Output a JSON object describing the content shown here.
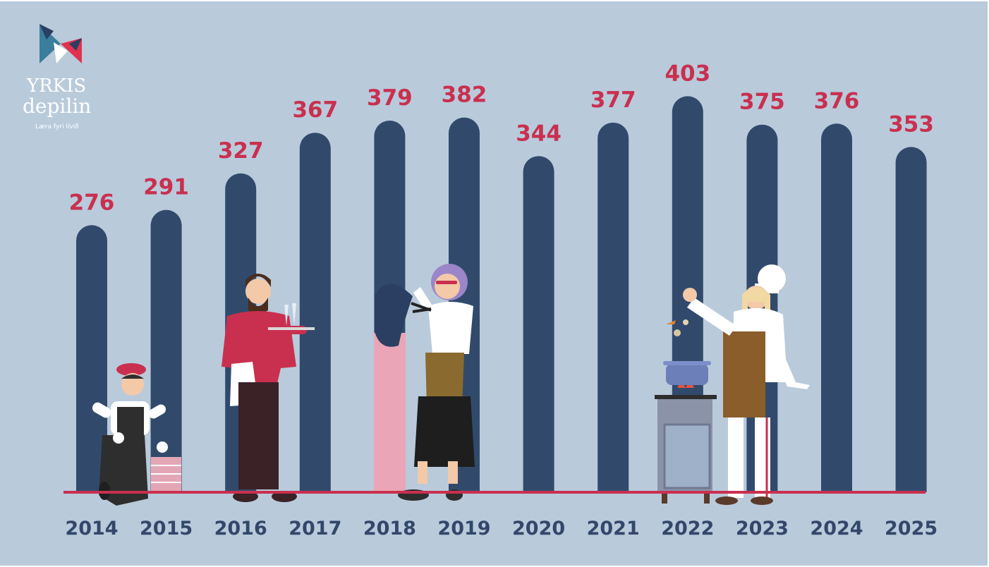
{
  "logo": {
    "line1": "YRKIS",
    "line2": "depilin",
    "tagline": "Læra fyri lívið",
    "colors": {
      "teal": "#3a7d9c",
      "navy": "#2a3f62",
      "red": "#e0314f",
      "white": "#ffffff"
    }
  },
  "chart_data": {
    "type": "bar",
    "categories": [
      "2014",
      "2015",
      "2016",
      "2017",
      "2018",
      "2019",
      "2020",
      "2021",
      "2022",
      "2023",
      "2024",
      "2025"
    ],
    "values": [
      276,
      291,
      327,
      367,
      379,
      382,
      344,
      377,
      403,
      375,
      376,
      353
    ],
    "highlight_index": 4,
    "highlight_partial_value": 130,
    "colors": {
      "bar": "#314a6c",
      "highlight": "#eaa6b6",
      "value_label": "#c9304f",
      "year_label": "#33476a",
      "baseline": "#c9304f",
      "background": "#b9cadb"
    },
    "bar_style": "rounded-top pill bars",
    "grid": false,
    "axes_visible": false,
    "illustrations": [
      "bricklayer",
      "waiter",
      "hairdresser",
      "chef-with-stove"
    ]
  }
}
